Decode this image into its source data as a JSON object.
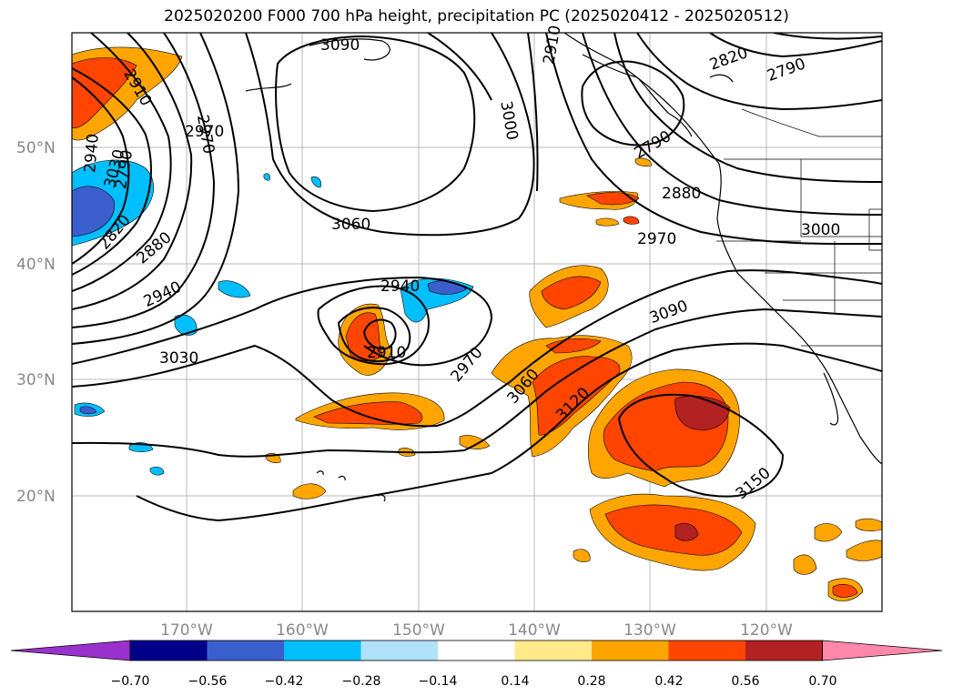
{
  "title": "2025020200 F000 700 hPa height, precipitation PC (2025020412 - 2025020512)",
  "lat_labels": [
    "50°N",
    "40°N",
    "30°N",
    "20°N"
  ],
  "lon_labels": [
    "170°W",
    "160°W",
    "150°W",
    "140°W",
    "130°W",
    "120°W"
  ],
  "contour_labels": [
    "3090",
    "3030",
    "3000",
    "2910",
    "2820",
    "2790",
    "2910",
    "2880",
    "2970",
    "2940",
    "2970",
    "3060",
    "2880",
    "3000",
    "2790",
    "2820",
    "2970",
    "2940",
    "3030",
    "2940",
    "2910",
    "2970",
    "3060",
    "3120",
    "3090",
    "3150",
    "2790"
  ],
  "colorbar": {
    "ticks": [
      "−0.70",
      "−0.56",
      "−0.42",
      "−0.28",
      "−0.14",
      "0.14",
      "0.28",
      "0.42",
      "0.56",
      "0.70"
    ],
    "colors": [
      "#9932cc",
      "#00008b",
      "#3a5fcd",
      "#00bfff",
      "#b0e0fa",
      "#ffffff",
      "#ffe98a",
      "#ffa500",
      "#ff4500",
      "#b22222",
      "#ff88aa"
    ]
  }
}
